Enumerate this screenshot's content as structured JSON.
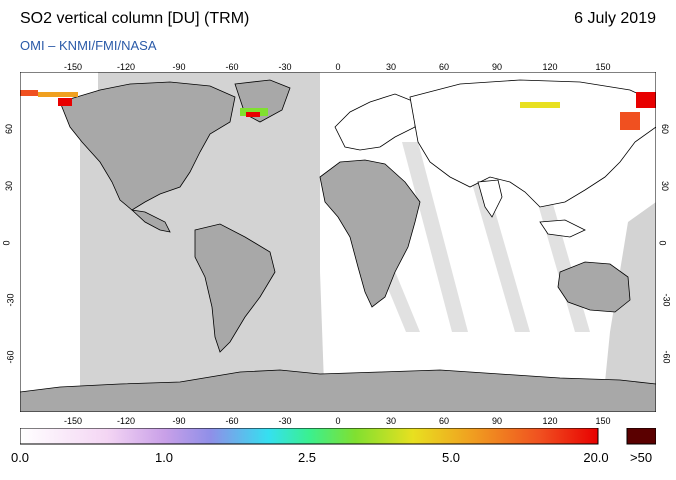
{
  "header": {
    "title": "SO2 vertical column [DU] (TRM)",
    "date": "6 July 2019",
    "subtitle": "OMI  –  KNMI/FMI/NASA"
  },
  "map": {
    "lon_range": [
      -180,
      180
    ],
    "lat_range": [
      -90,
      90
    ],
    "lon_ticks": [
      "-150",
      "-120",
      "-90",
      "-60",
      "-30",
      "0",
      "30",
      "60",
      "90",
      "120",
      "150"
    ],
    "lat_ticks": [
      "60",
      "30",
      "0",
      "-30",
      "-60"
    ],
    "colors": {
      "ocean_background": "#d3d3d3",
      "land": "#a8a8a8",
      "coverage": "#ffffff",
      "coastline": "#000000"
    }
  },
  "colorbar": {
    "labels": [
      "0.0",
      "1.0",
      "2.5",
      "5.0",
      "20.0"
    ],
    "overflow_label": ">50",
    "overflow_color": "#5a0000",
    "stops": [
      "#ffffff",
      "#f4d6f4",
      "#c9a0e8",
      "#8f8fe8",
      "#35e0f0",
      "#3af090",
      "#80e030",
      "#e8e020",
      "#f0a020",
      "#f05020",
      "#e80000"
    ]
  }
}
